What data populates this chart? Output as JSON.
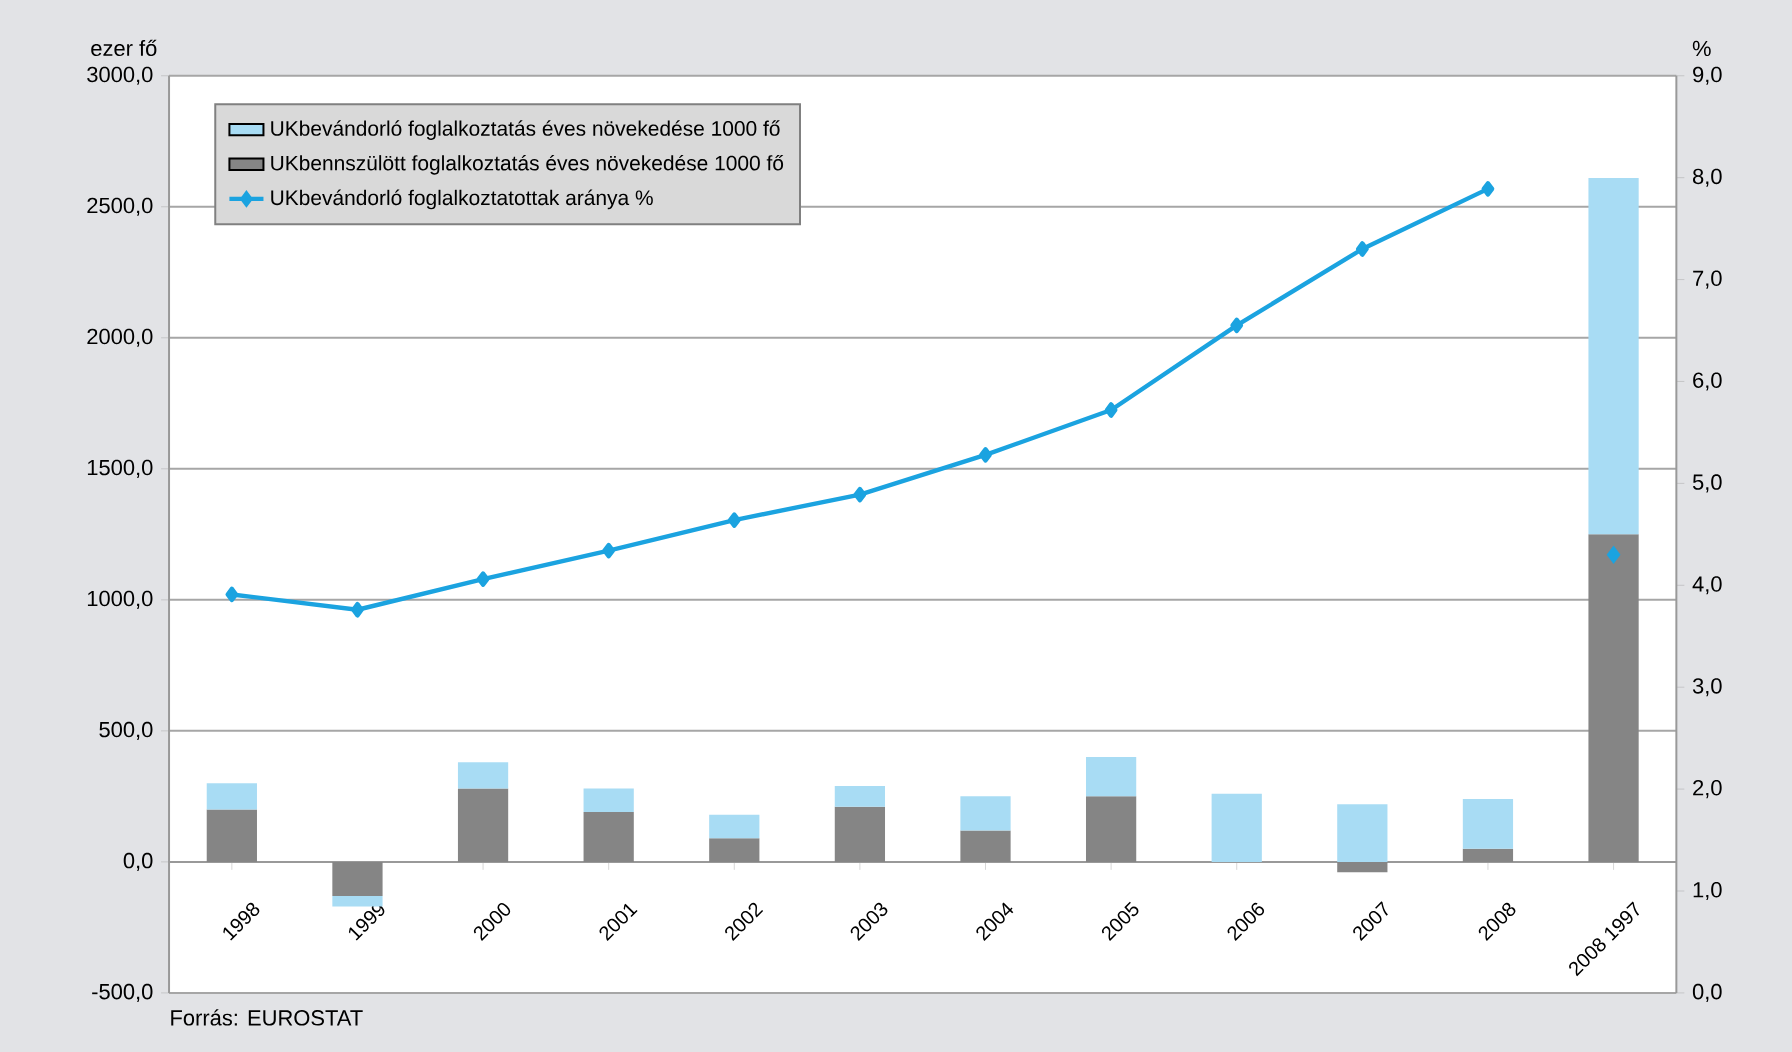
{
  "chart_data": {
    "type": "bar",
    "stacked": true,
    "categories": [
      "1998",
      "1999",
      "2000",
      "2001",
      "2002",
      "2003",
      "2004",
      "2005",
      "2006",
      "2007",
      "2008",
      "2008 1997"
    ],
    "ylabel": "ezer fő",
    "y2label": "%",
    "annotations": [
      "Forrás: EUROSTAT"
    ],
    "ylim": [
      -500,
      3000
    ],
    "yticks": [
      {
        "value": -500,
        "label": "-500,0"
      },
      {
        "value": 0,
        "label": "0,0"
      },
      {
        "value": 500,
        "label": "500,0"
      },
      {
        "value": 1000,
        "label": "1000,0"
      },
      {
        "value": 1500,
        "label": "1500,0"
      },
      {
        "value": 2000,
        "label": "2000,0"
      },
      {
        "value": 2500,
        "label": "2500,0"
      },
      {
        "value": 3000,
        "label": "3000,0"
      }
    ],
    "y2lim": [
      0,
      9
    ],
    "y2ticks": [
      {
        "value": 0,
        "label": "0,0"
      },
      {
        "value": 1,
        "label": "1,0"
      },
      {
        "value": 2,
        "label": "2,0"
      },
      {
        "value": 3,
        "label": "3,0"
      },
      {
        "value": 4,
        "label": "4,0"
      },
      {
        "value": 5,
        "label": "5,0"
      },
      {
        "value": 6,
        "label": "6,0"
      },
      {
        "value": 7,
        "label": "7,0"
      },
      {
        "value": 8,
        "label": "8,0"
      },
      {
        "value": 9,
        "label": "9,0"
      }
    ],
    "grid": "y",
    "legend": "top left",
    "marker": "diamond",
    "series": [
      {
        "name": "UKbennszülött foglalkoztatás éves növekedése 1000 fő",
        "color": "#858585",
        "values": [
          200,
          -130,
          280,
          190,
          90,
          210,
          120,
          250,
          0,
          -40,
          50,
          1250
        ]
      },
      {
        "name": "UKbevándorló foglalkoztatás éves növekedése 1000 fő",
        "color": "#a8dcf4",
        "values": [
          100,
          -40,
          100,
          90,
          90,
          80,
          130,
          150,
          260,
          220,
          190,
          1360
        ]
      },
      {
        "name": "UKbevándorló foglalkoztatottak aránya %",
        "type": "line",
        "axis": "y2",
        "color": "#1ba3e0",
        "values": [
          3.91,
          3.76,
          4.06,
          4.34,
          4.64,
          4.89,
          5.28,
          5.72,
          6.55,
          7.3,
          7.89,
          null
        ]
      },
      {
        "type": "scatter",
        "axis": "y2",
        "color": "#1ba3e0",
        "values": [
          null,
          null,
          null,
          null,
          null,
          null,
          null,
          null,
          null,
          null,
          null,
          4.3
        ]
      }
    ]
  }
}
